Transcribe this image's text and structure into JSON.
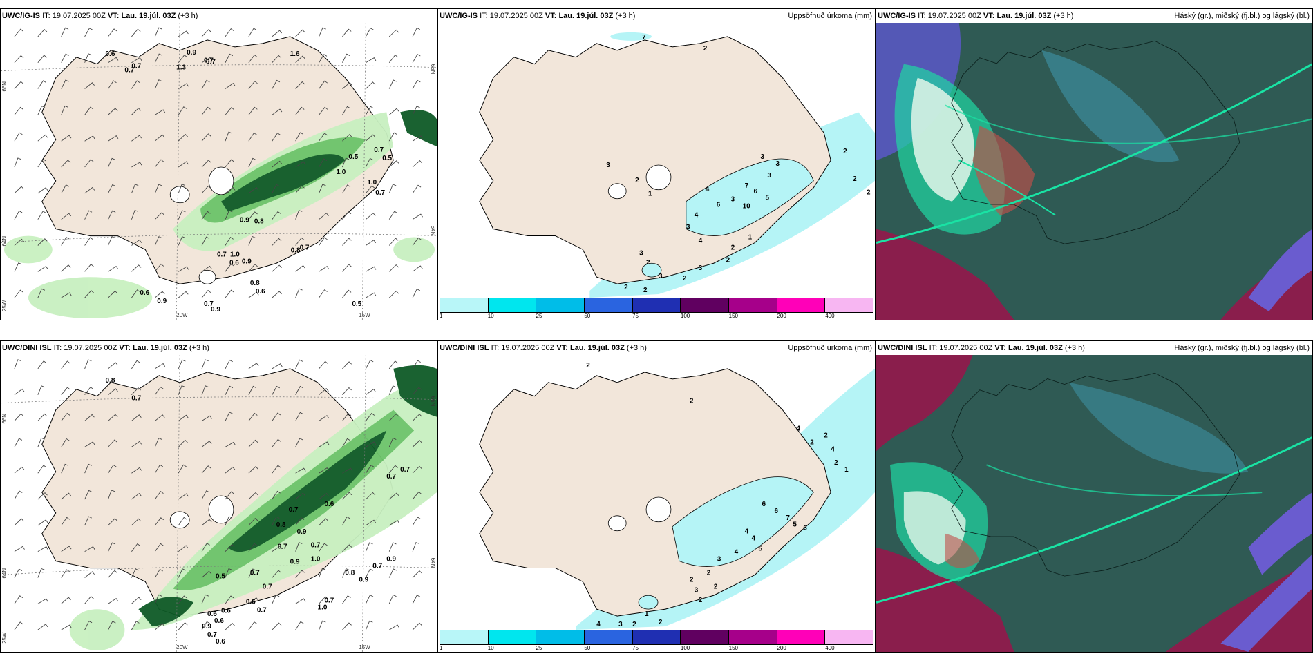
{
  "rows": [
    {
      "model": "UWC/IG-IS",
      "it_label": "IT:",
      "it_value": "19.07.2025 00Z",
      "vt_label": "VT:",
      "vt_value": "Lau. 19.júl. 03Z",
      "lead": "(+3 h)",
      "precip_title": "Uppsöfnuð úrkoma (mm)",
      "cloud_title": "Háský (gr.), miðský (fj.bl.) og lágský (bl.)",
      "grid_labels": {
        "lat_top": "66N",
        "lat_mid": "64N",
        "lat_top_right": "66N",
        "lat_mid_right": "64N",
        "lon_left": "25W",
        "lon_20": "20W",
        "lon_15": "15W"
      },
      "precip_labels": [
        "7",
        "2",
        "3",
        "2",
        "1",
        "3",
        "3",
        "3",
        "7",
        "6",
        "5",
        "4",
        "3",
        "10",
        "6",
        "4",
        "3",
        "4",
        "3",
        "2",
        "3",
        "2",
        "2",
        "2",
        "3",
        "2",
        "2",
        "1",
        "2",
        "2",
        "2"
      ],
      "wind_labels": [
        "0.6",
        "0.7",
        "0.7",
        "0.9",
        "0.7",
        "1.3",
        "0.7",
        "1.6",
        "0.5",
        "0.7",
        "0.5",
        "1.0",
        "1.0",
        "0.7",
        "0.9",
        "0.8",
        "1.0",
        "0.7",
        "0.9",
        "0.6",
        "0.8",
        "0.7",
        "0.8",
        "0.6",
        "0.7",
        "0.9",
        "0.5",
        "0.6",
        "0.9"
      ]
    },
    {
      "model": "UWC/DINI ISL",
      "it_label": "IT:",
      "it_value": "19.07.2025 00Z",
      "vt_label": "VT:",
      "vt_value": "Lau. 19.júl. 03Z",
      "lead": "(+3 h)",
      "precip_title": "Uppsöfnuð úrkoma (mm)",
      "cloud_title": "Háský (gr.), miðský (fj.bl.) og lágský (bl.)",
      "grid_labels": {
        "lat_top": "66N",
        "lat_mid": "64N",
        "lat_top_right": "66N",
        "lat_mid_right": "64N",
        "lon_left": "25W",
        "lon_20": "20W",
        "lon_15": "15W"
      },
      "precip_labels": [
        "2",
        "2",
        "4",
        "2",
        "2",
        "4",
        "6",
        "6",
        "7",
        "5",
        "6",
        "4",
        "4",
        "5",
        "4",
        "3",
        "2",
        "2",
        "2",
        "3",
        "2",
        "1",
        "2",
        "3",
        "2",
        "4",
        "2",
        "1"
      ],
      "wind_labels": [
        "0.8",
        "0.7",
        "0.8",
        "0.7",
        "0.9",
        "0.7",
        "1.0",
        "0.8",
        "0.9",
        "0.7",
        "0.9",
        "0.5",
        "0.7",
        "0.7",
        "0.6",
        "0.6",
        "0.6",
        "1.0",
        "0.7",
        "0.9",
        "0.6",
        "0.7",
        "0.7",
        "0.6",
        "0.9",
        "0.7",
        "0.6",
        "0.7",
        "0.7"
      ]
    }
  ],
  "colorbar": {
    "colors": [
      "#b8f6f8",
      "#00e6ee",
      "#00bde8",
      "#2a64e0",
      "#1f2fb2",
      "#600060",
      "#a6008a",
      "#ff00b8",
      "#f7b6f2"
    ],
    "ticks": [
      "1",
      "10",
      "25",
      "50",
      "75",
      "100",
      "150",
      "200",
      "400"
    ]
  },
  "colors": {
    "land": "#f2e6da",
    "precip_light": "#b5f4f6",
    "green_light": "#c8f0c0",
    "green_mid": "#6cc46a",
    "green_dark": "#0e5a26"
  }
}
